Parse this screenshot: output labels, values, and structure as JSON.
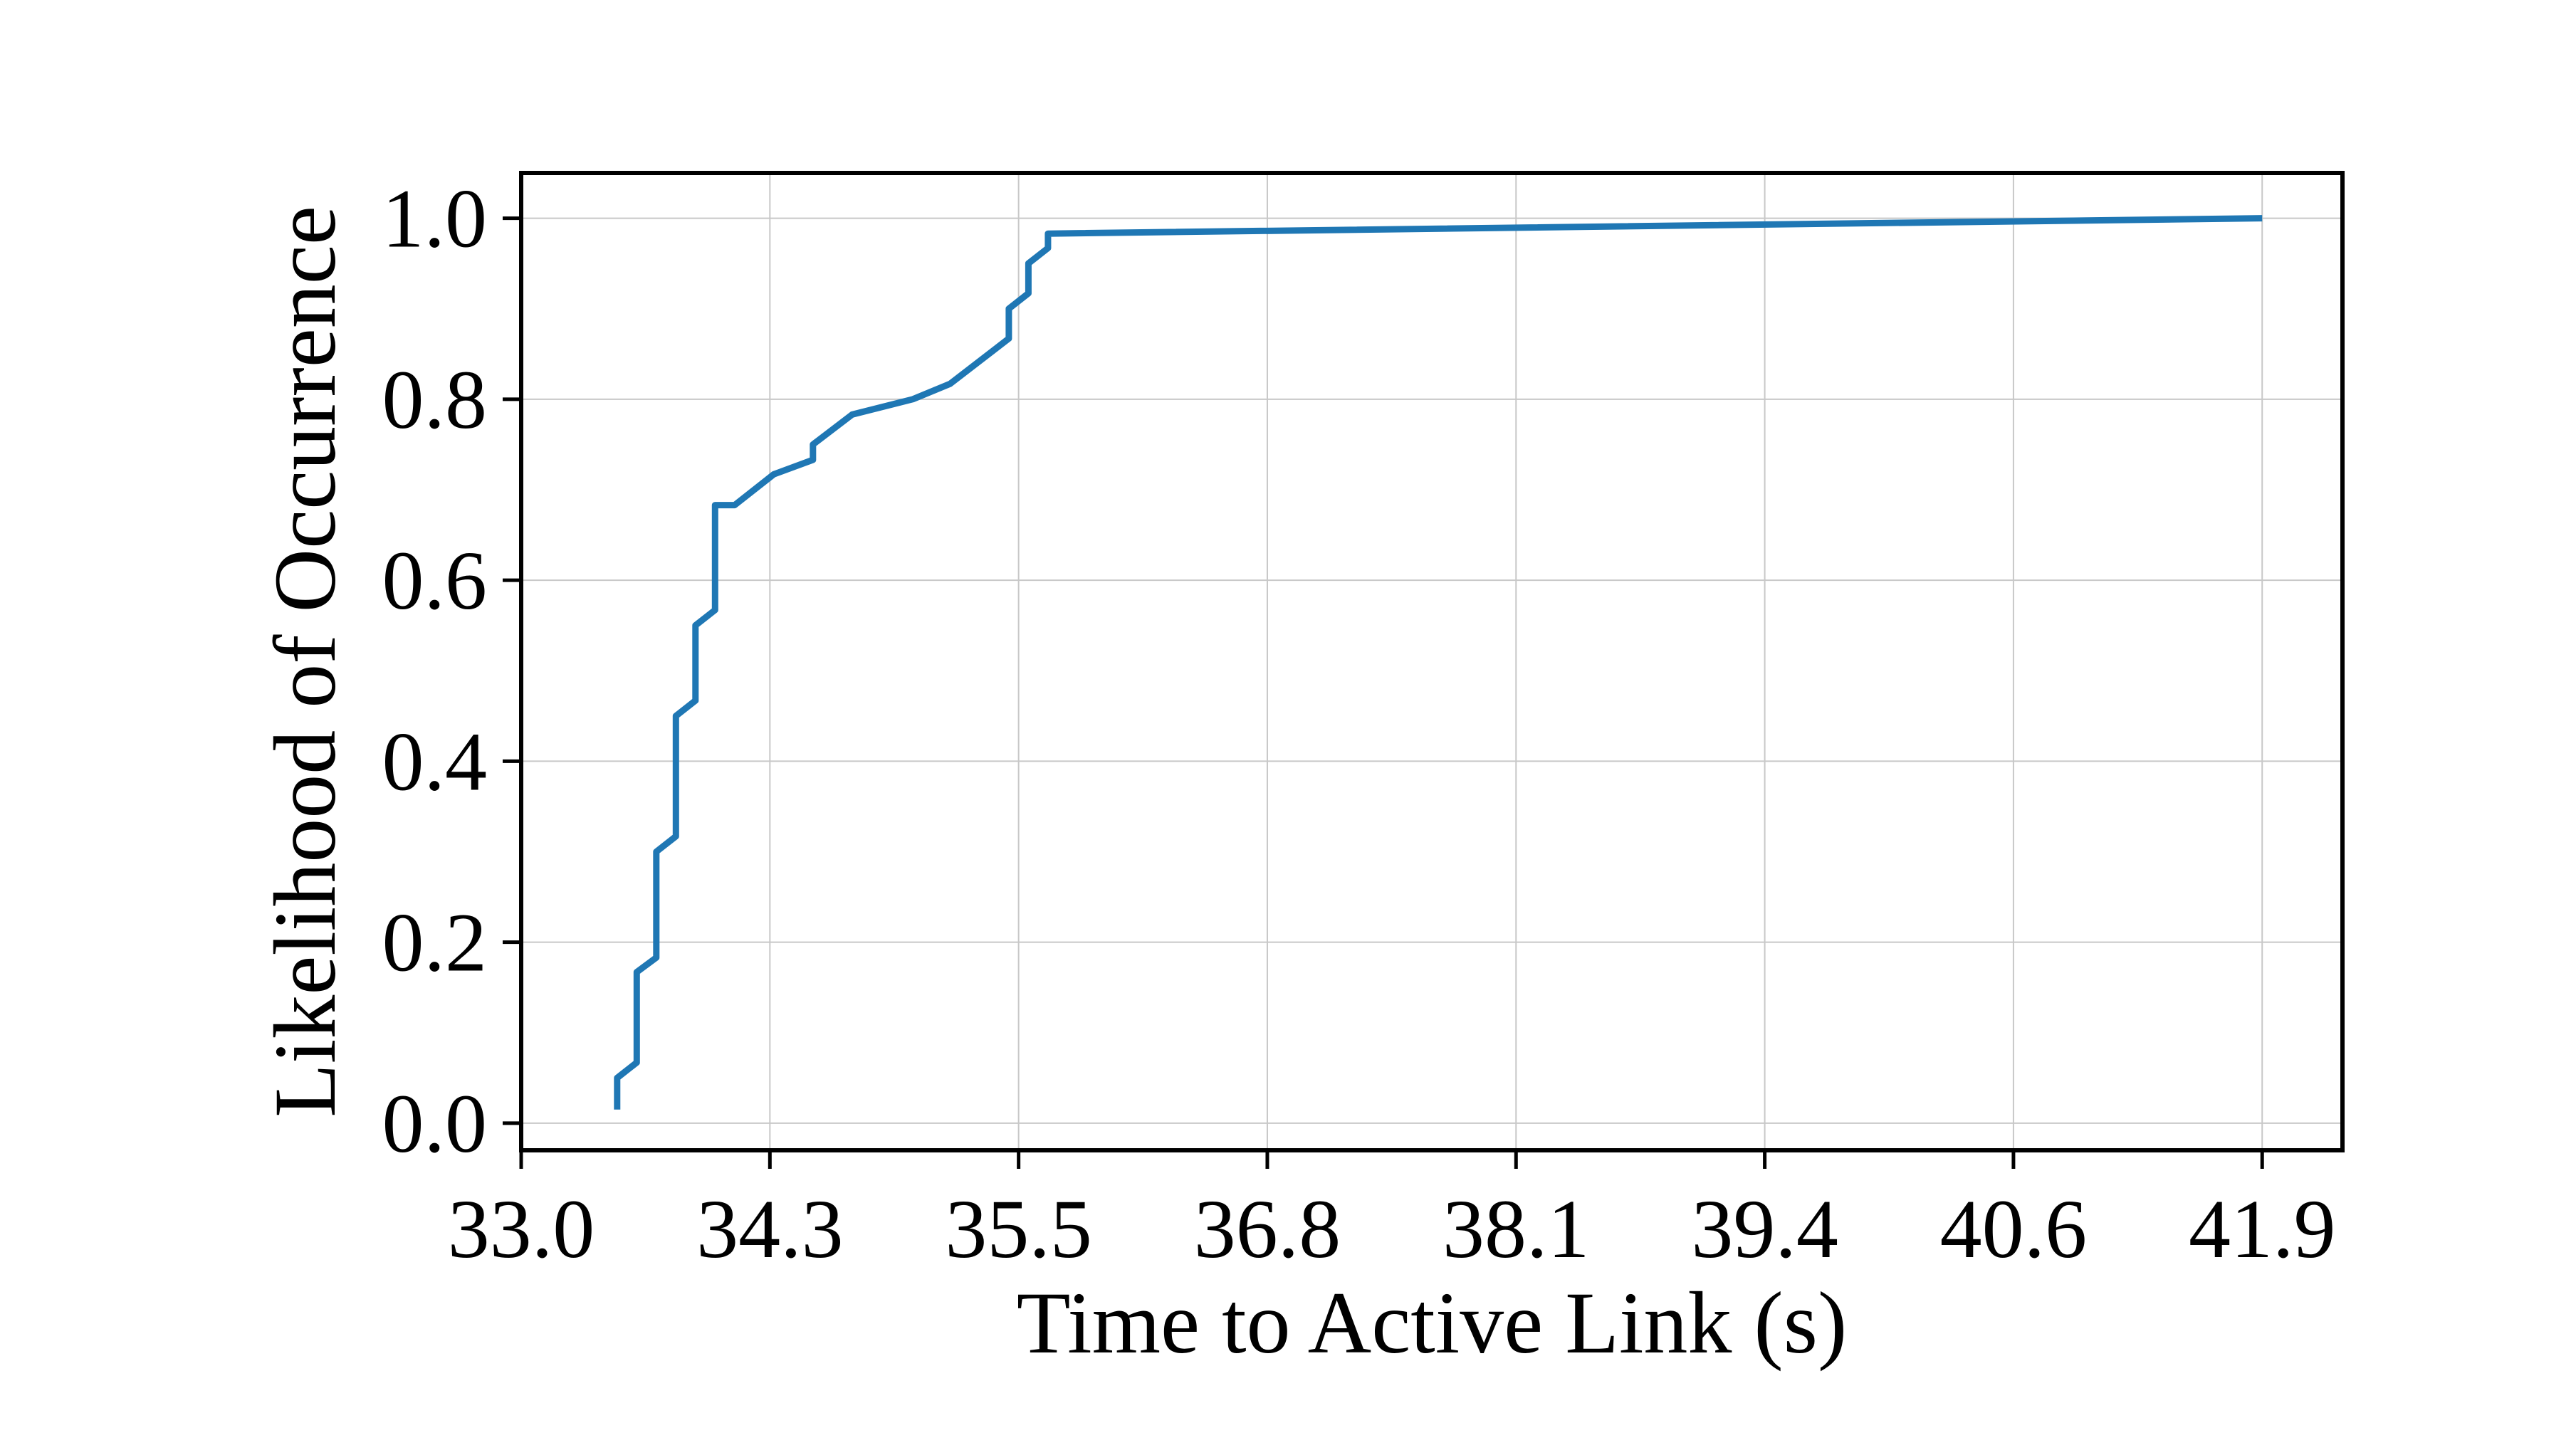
{
  "chart_data": {
    "type": "line",
    "title": "",
    "xlabel": "Time to Active Link (s)",
    "ylabel": "Likelihood of Occurrence",
    "xlim": [
      33.0,
      42.3
    ],
    "ylim": [
      -0.03,
      1.05
    ],
    "x_tick_values": [
      33.0,
      34.27,
      35.54,
      36.81,
      38.08,
      39.35,
      40.62,
      41.89
    ],
    "x_tick_labels": [
      "33.0",
      "34.3",
      "35.5",
      "36.8",
      "38.1",
      "39.4",
      "40.6",
      "41.9"
    ],
    "y_tick_values": [
      0.0,
      0.2,
      0.4,
      0.6,
      0.8,
      1.0
    ],
    "y_tick_labels": [
      "0.0",
      "0.2",
      "0.4",
      "0.6",
      "0.8",
      "1.0"
    ],
    "grid": true,
    "legend": "none",
    "series": [
      {
        "color": "#1f77b4",
        "x": [
          33.49,
          33.49,
          33.59,
          33.59,
          33.69,
          33.69,
          33.79,
          33.79,
          33.89,
          33.89,
          33.99,
          33.99,
          34.09,
          34.09,
          34.29,
          34.49,
          34.49,
          34.69,
          35.0,
          35.19,
          35.49,
          35.49,
          35.59,
          35.59,
          35.69,
          35.69,
          41.89
        ],
        "y": [
          0.015,
          0.05,
          0.067,
          0.167,
          0.183,
          0.3,
          0.317,
          0.45,
          0.467,
          0.55,
          0.567,
          0.683,
          0.683,
          0.683,
          0.717,
          0.733,
          0.75,
          0.783,
          0.8,
          0.817,
          0.867,
          0.9,
          0.917,
          0.95,
          0.967,
          0.983,
          1.0
        ]
      }
    ]
  }
}
